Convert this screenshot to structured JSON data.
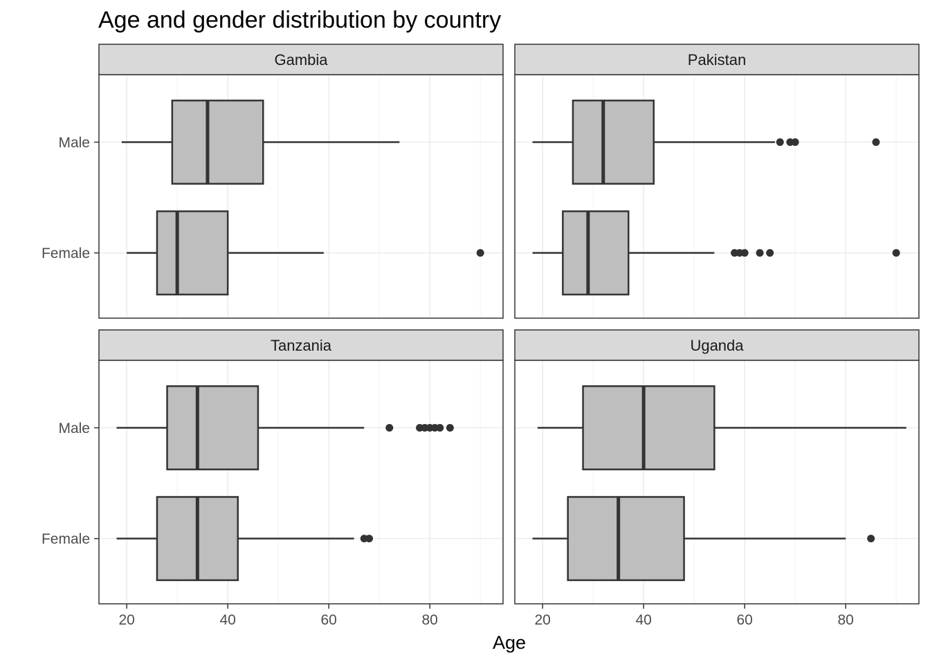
{
  "chart_data": {
    "type": "boxplot",
    "orientation": "horizontal",
    "title": "Age and gender distribution by country",
    "xlabel": "Age",
    "ylabel": "",
    "xlim": [
      14.5,
      94.5
    ],
    "x_ticks": [
      20,
      40,
      60,
      80
    ],
    "categories": [
      "Male",
      "Female"
    ],
    "grid": true,
    "facet_layout": "2x2",
    "colors": {
      "box_fill": "#bebebe",
      "line": "#333333",
      "strip_fill": "#d9d9d9",
      "grid": "#ebebeb"
    },
    "panels": [
      {
        "name": "Gambia",
        "groups": [
          {
            "category": "Male",
            "min": 19,
            "q1": 29,
            "median": 36,
            "q3": 47,
            "max": 74,
            "outliers": []
          },
          {
            "category": "Female",
            "min": 20,
            "q1": 26,
            "median": 30,
            "q3": 40,
            "max": 59,
            "outliers": [
              90
            ]
          }
        ]
      },
      {
        "name": "Pakistan",
        "groups": [
          {
            "category": "Male",
            "min": 18,
            "q1": 26,
            "median": 32,
            "q3": 42,
            "max": 66,
            "outliers": [
              67,
              69,
              70,
              86
            ]
          },
          {
            "category": "Female",
            "min": 18,
            "q1": 24,
            "median": 29,
            "q3": 37,
            "max": 54,
            "outliers": [
              58,
              59,
              60,
              63,
              65,
              90
            ]
          }
        ]
      },
      {
        "name": "Tanzania",
        "groups": [
          {
            "category": "Male",
            "min": 18,
            "q1": 28,
            "median": 34,
            "q3": 46,
            "max": 67,
            "outliers": [
              72,
              78,
              79,
              80,
              81,
              82,
              84
            ]
          },
          {
            "category": "Female",
            "min": 18,
            "q1": 26,
            "median": 34,
            "q3": 42,
            "max": 65,
            "outliers": [
              67,
              68
            ]
          }
        ]
      },
      {
        "name": "Uganda",
        "groups": [
          {
            "category": "Male",
            "min": 19,
            "q1": 28,
            "median": 40,
            "q3": 54,
            "max": 92,
            "outliers": []
          },
          {
            "category": "Female",
            "min": 18,
            "q1": 25,
            "median": 35,
            "q3": 48,
            "max": 80,
            "outliers": [
              85
            ]
          }
        ]
      }
    ]
  }
}
